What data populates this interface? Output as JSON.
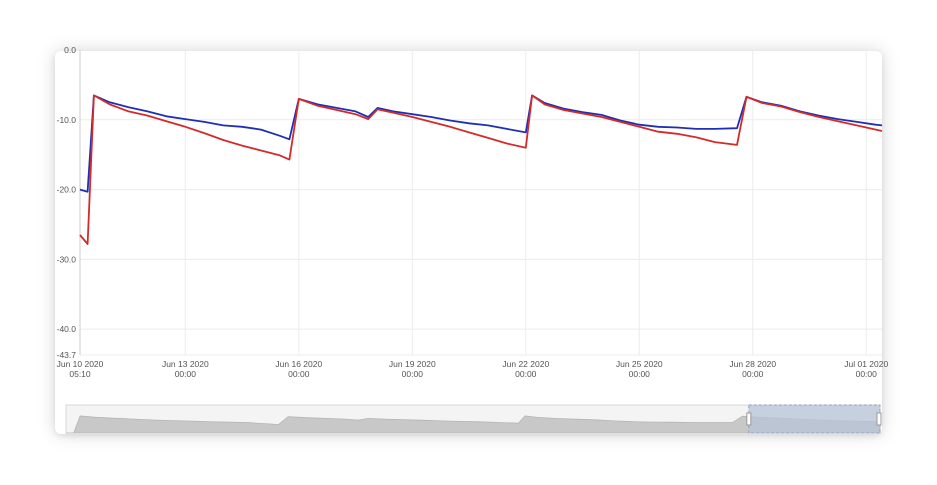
{
  "chart_data": {
    "type": "line",
    "title": "",
    "xlabel": "",
    "ylabel": "",
    "ylim": [
      -43.7,
      0
    ],
    "y_ticks": [
      "0.0",
      "-10.0",
      "-20.0",
      "-30.0",
      "-40.0",
      "-43.7"
    ],
    "x_ticks": [
      {
        "line1": "Jun 10 2020",
        "line2": "05:10"
      },
      {
        "line1": "Jun 13 2020",
        "line2": "00:00"
      },
      {
        "line1": "Jun 16 2020",
        "line2": "00:00"
      },
      {
        "line1": "Jun 19 2020",
        "line2": "00:00"
      },
      {
        "line1": "Jun 22 2020",
        "line2": "00:00"
      },
      {
        "line1": "Jun 25 2020",
        "line2": "00:00"
      },
      {
        "line1": "Jun 28 2020",
        "line2": "00:00"
      },
      {
        "line1": "Jul 01 2020",
        "line2": "00:00"
      }
    ],
    "x_range": [
      "2020-06-10 05:10",
      "2020-07-01 10:00"
    ],
    "grid": true,
    "legend": "none",
    "series": [
      {
        "color": "#1f2fb5",
        "points": [
          [
            "2020-06-10 05:10",
            -20.0
          ],
          [
            "2020-06-10 10:00",
            -20.3
          ],
          [
            "2020-06-10 14:00",
            -6.5
          ],
          [
            "2020-06-11 00:00",
            -7.5
          ],
          [
            "2020-06-11 12:00",
            -8.2
          ],
          [
            "2020-06-12 00:00",
            -8.8
          ],
          [
            "2020-06-12 12:00",
            -9.5
          ],
          [
            "2020-06-13 00:00",
            -9.9
          ],
          [
            "2020-06-13 12:00",
            -10.3
          ],
          [
            "2020-06-14 00:00",
            -10.8
          ],
          [
            "2020-06-14 12:00",
            -11.0
          ],
          [
            "2020-06-15 00:00",
            -11.4
          ],
          [
            "2020-06-15 12:00",
            -12.3
          ],
          [
            "2020-06-15 18:00",
            -12.8
          ],
          [
            "2020-06-16 00:00",
            -7.0
          ],
          [
            "2020-06-16 12:00",
            -7.8
          ],
          [
            "2020-06-17 00:00",
            -8.3
          ],
          [
            "2020-06-17 12:00",
            -8.8
          ],
          [
            "2020-06-17 20:00",
            -9.6
          ],
          [
            "2020-06-18 02:00",
            -8.3
          ],
          [
            "2020-06-18 12:00",
            -8.8
          ],
          [
            "2020-06-19 00:00",
            -9.2
          ],
          [
            "2020-06-19 12:00",
            -9.6
          ],
          [
            "2020-06-20 00:00",
            -10.1
          ],
          [
            "2020-06-20 12:00",
            -10.5
          ],
          [
            "2020-06-21 00:00",
            -10.8
          ],
          [
            "2020-06-21 12:00",
            -11.3
          ],
          [
            "2020-06-22 00:00",
            -11.8
          ],
          [
            "2020-06-22 04:00",
            -6.5
          ],
          [
            "2020-06-22 12:00",
            -7.6
          ],
          [
            "2020-06-23 00:00",
            -8.4
          ],
          [
            "2020-06-23 12:00",
            -8.9
          ],
          [
            "2020-06-24 00:00",
            -9.3
          ],
          [
            "2020-06-24 12:00",
            -10.1
          ],
          [
            "2020-06-25 00:00",
            -10.7
          ],
          [
            "2020-06-25 12:00",
            -11.0
          ],
          [
            "2020-06-26 00:00",
            -11.1
          ],
          [
            "2020-06-26 12:00",
            -11.3
          ],
          [
            "2020-06-27 00:00",
            -11.3
          ],
          [
            "2020-06-27 14:00",
            -11.2
          ],
          [
            "2020-06-27 20:00",
            -6.7
          ],
          [
            "2020-06-28 06:00",
            -7.5
          ],
          [
            "2020-06-28 18:00",
            -8.0
          ],
          [
            "2020-06-29 06:00",
            -8.8
          ],
          [
            "2020-06-29 18:00",
            -9.4
          ],
          [
            "2020-06-30 06:00",
            -9.9
          ],
          [
            "2020-06-30 18:00",
            -10.3
          ],
          [
            "2020-07-01 06:00",
            -10.7
          ],
          [
            "2020-07-01 10:00",
            -10.8
          ]
        ]
      },
      {
        "color": "#d42a2a",
        "points": [
          [
            "2020-06-10 05:10",
            -26.5
          ],
          [
            "2020-06-10 10:00",
            -27.8
          ],
          [
            "2020-06-10 14:00",
            -6.5
          ],
          [
            "2020-06-11 00:00",
            -7.8
          ],
          [
            "2020-06-11 12:00",
            -8.8
          ],
          [
            "2020-06-12 00:00",
            -9.4
          ],
          [
            "2020-06-12 12:00",
            -10.2
          ],
          [
            "2020-06-13 00:00",
            -11.0
          ],
          [
            "2020-06-13 12:00",
            -11.9
          ],
          [
            "2020-06-14 00:00",
            -12.9
          ],
          [
            "2020-06-14 12:00",
            -13.7
          ],
          [
            "2020-06-15 00:00",
            -14.4
          ],
          [
            "2020-06-15 12:00",
            -15.1
          ],
          [
            "2020-06-15 18:00",
            -15.7
          ],
          [
            "2020-06-16 00:00",
            -7.0
          ],
          [
            "2020-06-16 12:00",
            -8.0
          ],
          [
            "2020-06-17 00:00",
            -8.6
          ],
          [
            "2020-06-17 12:00",
            -9.2
          ],
          [
            "2020-06-17 20:00",
            -9.9
          ],
          [
            "2020-06-18 02:00",
            -8.5
          ],
          [
            "2020-06-18 12:00",
            -9.0
          ],
          [
            "2020-06-19 00:00",
            -9.6
          ],
          [
            "2020-06-19 12:00",
            -10.3
          ],
          [
            "2020-06-20 00:00",
            -11.0
          ],
          [
            "2020-06-20 12:00",
            -11.8
          ],
          [
            "2020-06-21 00:00",
            -12.6
          ],
          [
            "2020-06-21 12:00",
            -13.4
          ],
          [
            "2020-06-22 00:00",
            -14.0
          ],
          [
            "2020-06-22 04:00",
            -6.5
          ],
          [
            "2020-06-22 12:00",
            -7.8
          ],
          [
            "2020-06-23 00:00",
            -8.6
          ],
          [
            "2020-06-23 12:00",
            -9.1
          ],
          [
            "2020-06-24 00:00",
            -9.6
          ],
          [
            "2020-06-24 12:00",
            -10.3
          ],
          [
            "2020-06-25 00:00",
            -11.0
          ],
          [
            "2020-06-25 12:00",
            -11.7
          ],
          [
            "2020-06-26 00:00",
            -12.0
          ],
          [
            "2020-06-26 12:00",
            -12.5
          ],
          [
            "2020-06-27 00:00",
            -13.2
          ],
          [
            "2020-06-27 14:00",
            -13.6
          ],
          [
            "2020-06-27 20:00",
            -6.7
          ],
          [
            "2020-06-28 06:00",
            -7.6
          ],
          [
            "2020-06-28 18:00",
            -8.1
          ],
          [
            "2020-06-29 06:00",
            -8.9
          ],
          [
            "2020-06-29 18:00",
            -9.6
          ],
          [
            "2020-06-30 06:00",
            -10.2
          ],
          [
            "2020-06-30 18:00",
            -10.8
          ],
          [
            "2020-07-01 06:00",
            -11.4
          ],
          [
            "2020-07-01 10:00",
            -11.6
          ]
        ]
      }
    ],
    "navigator": {
      "selected_range": [
        "2020-06-28 00:00",
        "2020-07-01 10:00"
      ],
      "series_color": "#c8c8c8",
      "selection_color": "#b7c4d8"
    }
  }
}
